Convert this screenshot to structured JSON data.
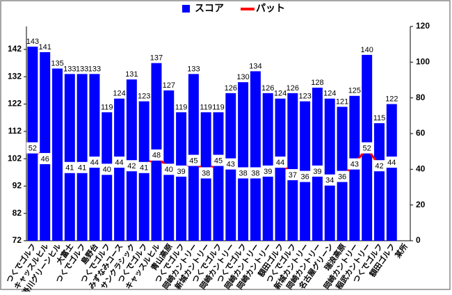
{
  "chart_data": {
    "type": "bar_line",
    "categories": [
      "つくでゴルフ",
      "キャッスルヒル",
      "掛川グリーンヒル",
      "大富士",
      "つくでゴルフ",
      "島野台",
      "つくでゴルフ",
      "みずなみコース",
      "サンクラシック",
      "つくでゴルフ",
      "キャッスルヒル",
      "青山高原",
      "つくでゴルフ",
      "岡崎カントリー",
      "新城カントリー",
      "つくでゴルフ",
      "岡崎カントリー",
      "つくでゴルフ",
      "岡崎カントリー",
      "岡崎カントリー",
      "額田ゴルフ",
      "つくでゴルフ",
      "新城カントリー",
      "岡崎カントリー",
      "名古屋グリーン",
      "瑞浪高原",
      "岡崎カントリー",
      "稲武カントリー",
      "つくでゴルフ",
      "額田ゴルフ",
      "某所"
    ],
    "series": [
      {
        "name": "スコア",
        "color": "#0000ff",
        "type": "bar",
        "values": [
          143,
          141,
          135,
          133,
          133,
          133,
          119,
          124,
          131,
          123,
          137,
          127,
          119,
          133,
          119,
          119,
          126,
          130,
          134,
          126,
          124,
          126,
          123,
          128,
          124,
          121,
          125,
          140,
          115,
          122,
          null
        ]
      },
      {
        "name": "パット",
        "color": "#ff0000",
        "type": "line",
        "axis": "y2",
        "values": [
          52,
          46,
          null,
          41,
          41,
          44,
          40,
          44,
          42,
          41,
          48,
          40,
          39,
          45,
          38,
          45,
          43,
          38,
          38,
          39,
          44,
          37,
          36,
          39,
          34,
          36,
          43,
          52,
          42,
          44,
          null
        ]
      }
    ],
    "ylim": [
      72,
      150.4
    ],
    "yticks": [
      72,
      82,
      92,
      102,
      112,
      122,
      132,
      142
    ],
    "y2lim": [
      0,
      120
    ],
    "y2ticks": [
      0,
      20,
      40,
      60,
      80,
      100,
      120
    ],
    "legend": "top"
  }
}
